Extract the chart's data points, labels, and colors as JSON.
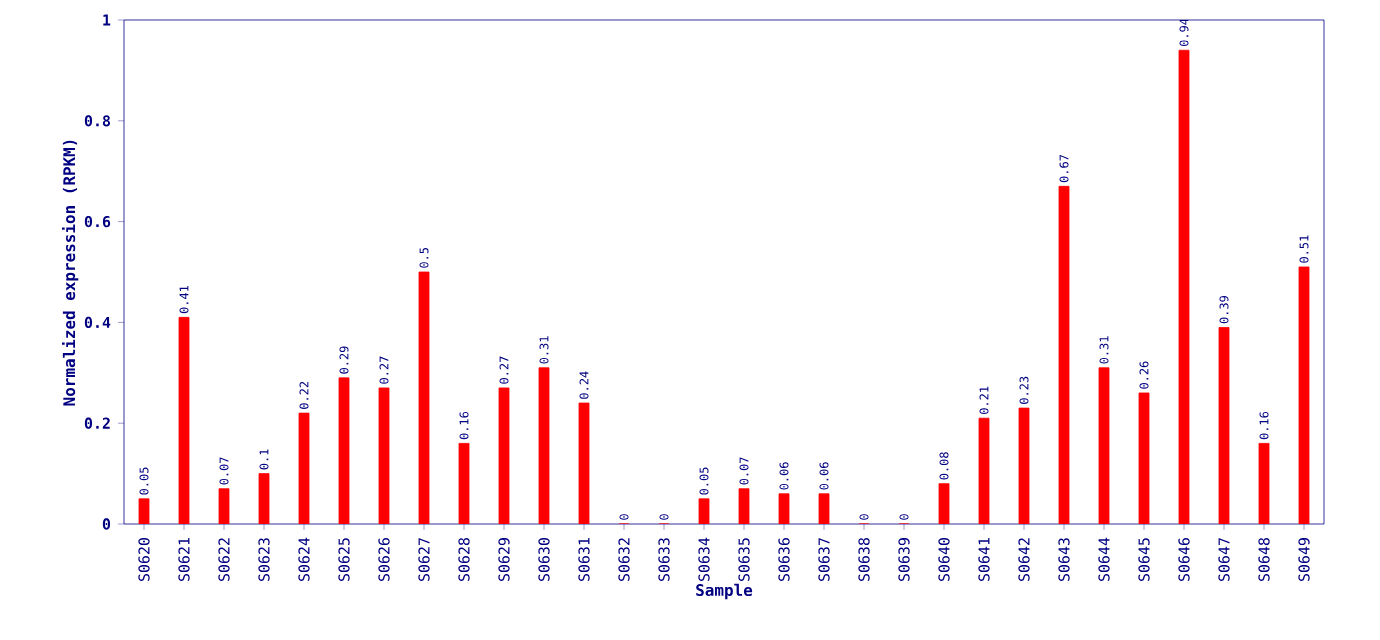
{
  "chart_data": {
    "type": "bar",
    "xlabel": "Sample",
    "ylabel": "Normalized expression (RPKM)",
    "categories": [
      "S0620",
      "S0621",
      "S0622",
      "S0623",
      "S0624",
      "S0625",
      "S0626",
      "S0627",
      "S0628",
      "S0629",
      "S0630",
      "S0631",
      "S0632",
      "S0633",
      "S0634",
      "S0635",
      "S0636",
      "S0637",
      "S0638",
      "S0639",
      "S0640",
      "S0641",
      "S0642",
      "S0643",
      "S0644",
      "S0645",
      "S0646",
      "S0647",
      "S0648",
      "S0649"
    ],
    "values": [
      0.05,
      0.41,
      0.07,
      0.1,
      0.22,
      0.29,
      0.27,
      0.5,
      0.16,
      0.27,
      0.31,
      0.24,
      0,
      0,
      0.05,
      0.07,
      0.06,
      0.06,
      0,
      0,
      0.08,
      0.21,
      0.23,
      0.67,
      0.31,
      0.26,
      0.94,
      0.39,
      0.16,
      0.51
    ],
    "color": "#ff0000",
    "ylim": [
      0,
      1
    ],
    "yticks": [
      0,
      0.2,
      0.4,
      0.6,
      0.8,
      1
    ],
    "data_labels": true
  }
}
